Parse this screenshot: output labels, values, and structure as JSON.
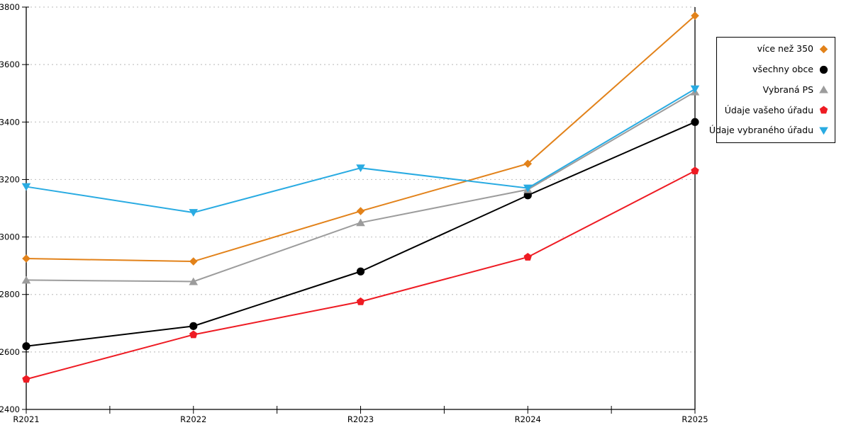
{
  "page": {
    "background": "#ffffff"
  },
  "chart_data": {
    "type": "line",
    "x": [
      "R2021",
      "R2022",
      "R2023",
      "R2024",
      "R2025"
    ],
    "yticks": [
      "2400",
      "2600",
      "2800",
      "3000",
      "3200",
      "3400",
      "3600",
      "3800"
    ],
    "ylim": [
      2400,
      3800
    ],
    "grid": "horizontal-dotted",
    "legend_position": "right",
    "colors": {
      "axis": "#000000",
      "grid": "#c6c6c6",
      "background": "#ffffff"
    },
    "series": [
      {
        "name": "více než 350",
        "color": "#e2821a",
        "marker": "diamond",
        "values": [
          2925,
          2915,
          3090,
          3255,
          3770
        ]
      },
      {
        "name": "všechny obce",
        "color": "#000000",
        "marker": "circle",
        "values": [
          2620,
          2690,
          2880,
          3145,
          3400
        ]
      },
      {
        "name": "Vybraná PS",
        "color": "#9c9c9c",
        "marker": "triangle-up",
        "values": [
          2850,
          2845,
          3050,
          3165,
          3505
        ]
      },
      {
        "name": "Údaje vašeho úřadu",
        "color": "#ee1b23",
        "marker": "pentagon",
        "values": [
          2505,
          2660,
          2775,
          2930,
          3230
        ]
      },
      {
        "name": "Údaje vybraného úřadu",
        "color": "#29abe2",
        "marker": "triangle-down",
        "values": [
          3175,
          3085,
          3240,
          3170,
          3515
        ]
      }
    ]
  }
}
